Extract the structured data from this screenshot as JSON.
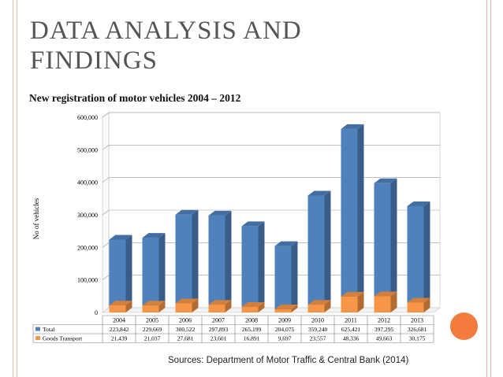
{
  "slide": {
    "title": "DATA ANALYSIS AND FINDINGS",
    "subtitle": "New registration of motor vehicles 2004 – 2012",
    "source": "Sources: Department of Motor Traffic & Central Bank (2014)",
    "accent_color": "#f47b3e",
    "line_color": "#e8b9a3"
  },
  "chart_data": {
    "type": "bar",
    "style": "3d-column-with-data-table",
    "ylabel": "No of vehicles",
    "ylim": [
      0,
      600000
    ],
    "yticks": [
      "0",
      "100,000",
      "200,000",
      "300,000",
      "400,000",
      "500,000",
      "600,000"
    ],
    "yticks_values": [
      0,
      100000,
      200000,
      300000,
      400000,
      500000,
      600000
    ],
    "grid": true,
    "categories": [
      "2004",
      "2005",
      "2006",
      "2007",
      "2008",
      "2009",
      "2010",
      "2011",
      "2012",
      "2013"
    ],
    "series": [
      {
        "name": "Total",
        "color": "#4f81bd",
        "values": [
          223842,
          229669,
          300522,
          297893,
          265199,
          204075,
          359240,
          625421,
          397295,
          326681
        ],
        "labels": [
          "223,842",
          "229,669",
          "300,522",
          "297,893",
          "265,199",
          "204,075",
          "359,240",
          "625,421",
          "397,295",
          "326,681"
        ]
      },
      {
        "name": "Goods Transport",
        "color": "#f79646",
        "values": [
          21439,
          21037,
          27681,
          23601,
          16891,
          9697,
          23557,
          48336,
          49663,
          30175
        ],
        "labels": [
          "21,439",
          "21,037",
          "27,681",
          "23,601",
          "16,891",
          "9,697",
          "23,557",
          "48,336",
          "49,663",
          "30,175"
        ]
      }
    ]
  }
}
